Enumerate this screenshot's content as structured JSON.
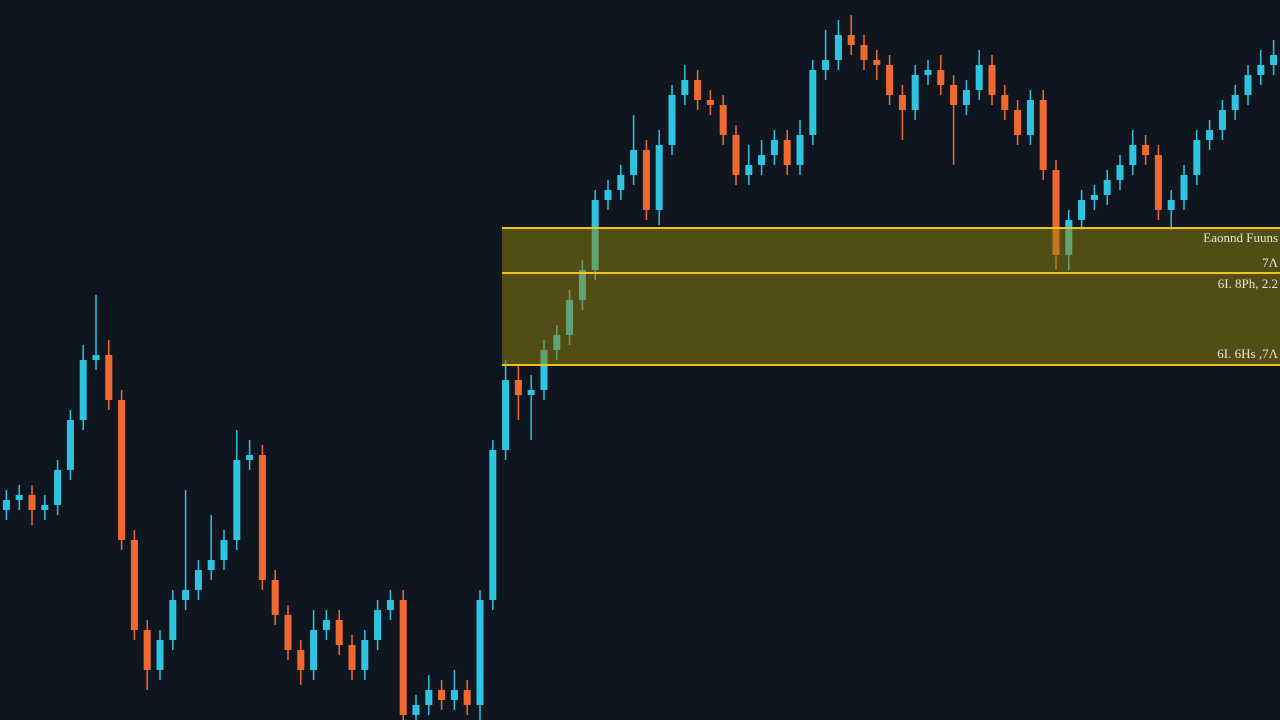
{
  "chart_data": {
    "type": "candlestick",
    "ylim": [
      0,
      720
    ],
    "up_color": "#2ec4e0",
    "down_color": "#f06a30",
    "open": [
      210,
      220,
      225,
      210,
      215,
      250,
      300,
      360,
      365,
      320,
      180,
      90,
      50,
      80,
      120,
      130,
      150,
      160,
      180,
      260,
      265,
      140,
      105,
      70,
      50,
      90,
      100,
      75,
      50,
      80,
      110,
      120,
      5,
      15,
      30,
      20,
      30,
      15,
      120,
      270,
      340,
      325,
      330,
      370,
      385,
      420,
      450,
      520,
      530,
      545,
      570,
      510,
      575,
      625,
      640,
      620,
      615,
      585,
      545,
      555,
      565,
      580,
      555,
      585,
      650,
      660,
      685,
      675,
      660,
      655,
      625,
      610,
      645,
      650,
      635,
      615,
      630,
      655,
      625,
      610,
      585,
      620,
      550,
      465,
      500,
      520,
      525,
      540,
      555,
      575,
      565,
      510,
      520,
      545,
      580,
      590,
      610,
      625,
      645,
      655
    ],
    "high": [
      230,
      235,
      235,
      225,
      260,
      310,
      375,
      425,
      380,
      330,
      190,
      100,
      90,
      130,
      230,
      160,
      205,
      190,
      290,
      280,
      275,
      150,
      115,
      80,
      110,
      110,
      110,
      85,
      90,
      120,
      130,
      130,
      25,
      45,
      40,
      50,
      40,
      130,
      280,
      360,
      355,
      345,
      380,
      395,
      430,
      460,
      530,
      540,
      555,
      605,
      580,
      590,
      635,
      655,
      650,
      630,
      625,
      595,
      575,
      580,
      590,
      590,
      600,
      660,
      690,
      700,
      705,
      685,
      670,
      665,
      635,
      655,
      660,
      665,
      645,
      640,
      670,
      665,
      635,
      620,
      630,
      630,
      560,
      510,
      530,
      535,
      550,
      565,
      590,
      585,
      575,
      530,
      555,
      590,
      600,
      620,
      635,
      655,
      670,
      680
    ],
    "low": [
      200,
      210,
      195,
      200,
      205,
      240,
      290,
      350,
      310,
      170,
      80,
      30,
      40,
      70,
      110,
      120,
      140,
      150,
      170,
      250,
      130,
      95,
      60,
      35,
      40,
      80,
      65,
      40,
      40,
      70,
      100,
      0,
      0,
      5,
      10,
      10,
      5,
      0,
      110,
      260,
      300,
      280,
      320,
      360,
      375,
      410,
      440,
      510,
      520,
      535,
      500,
      495,
      565,
      615,
      610,
      605,
      575,
      535,
      535,
      545,
      555,
      545,
      545,
      575,
      640,
      650,
      665,
      650,
      640,
      615,
      580,
      600,
      635,
      625,
      555,
      605,
      620,
      615,
      600,
      575,
      575,
      540,
      450,
      450,
      490,
      510,
      515,
      530,
      545,
      555,
      500,
      490,
      510,
      535,
      570,
      580,
      600,
      615,
      635,
      645
    ],
    "close": [
      220,
      225,
      210,
      215,
      250,
      300,
      360,
      365,
      320,
      180,
      90,
      50,
      80,
      120,
      130,
      150,
      160,
      180,
      260,
      265,
      140,
      105,
      70,
      50,
      90,
      100,
      75,
      50,
      80,
      110,
      120,
      5,
      15,
      30,
      20,
      30,
      15,
      120,
      270,
      340,
      325,
      330,
      370,
      385,
      420,
      450,
      520,
      530,
      545,
      570,
      510,
      575,
      625,
      640,
      620,
      615,
      585,
      545,
      555,
      565,
      580,
      555,
      585,
      650,
      660,
      685,
      675,
      660,
      655,
      625,
      610,
      645,
      650,
      635,
      615,
      630,
      655,
      625,
      610,
      585,
      620,
      550,
      465,
      500,
      520,
      525,
      540,
      555,
      575,
      565,
      510,
      520,
      545,
      580,
      590,
      610,
      625,
      645,
      655,
      665
    ],
    "zone_lines": [
      492,
      447,
      355
    ],
    "zone_line_color": "#f2c21a",
    "zone_fill": "rgba(150,130,10,0.5)",
    "annotations": [
      "Eaonnd Fuuns",
      "7Λ",
      "6Ι. 8Ρh, 2.2",
      "6Ι. 6Ηs ,7Λ"
    ]
  }
}
